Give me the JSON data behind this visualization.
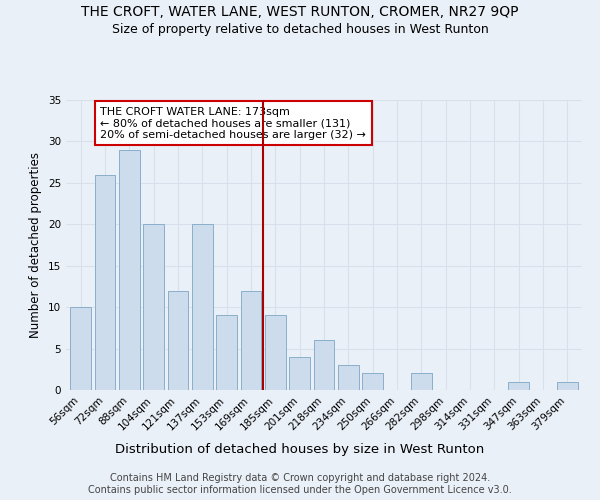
{
  "title": "THE CROFT, WATER LANE, WEST RUNTON, CROMER, NR27 9QP",
  "subtitle": "Size of property relative to detached houses in West Runton",
  "xlabel": "Distribution of detached houses by size in West Runton",
  "ylabel": "Number of detached properties",
  "categories": [
    "56sqm",
    "72sqm",
    "88sqm",
    "104sqm",
    "121sqm",
    "137sqm",
    "153sqm",
    "169sqm",
    "185sqm",
    "201sqm",
    "218sqm",
    "234sqm",
    "250sqm",
    "266sqm",
    "282sqm",
    "298sqm",
    "314sqm",
    "331sqm",
    "347sqm",
    "363sqm",
    "379sqm"
  ],
  "values": [
    10,
    26,
    29,
    20,
    12,
    20,
    9,
    12,
    9,
    4,
    6,
    3,
    2,
    0,
    2,
    0,
    0,
    0,
    1,
    0,
    1
  ],
  "bar_color": "#cddcec",
  "bar_edge_color": "#8aaecb",
  "vline_x": 7.5,
  "vline_color": "#aa0000",
  "annotation_text": "THE CROFT WATER LANE: 173sqm\n← 80% of detached houses are smaller (131)\n20% of semi-detached houses are larger (32) →",
  "annotation_box_color": "white",
  "annotation_box_edge_color": "#cc0000",
  "ylim": [
    0,
    35
  ],
  "yticks": [
    0,
    5,
    10,
    15,
    20,
    25,
    30,
    35
  ],
  "footer": "Contains HM Land Registry data © Crown copyright and database right 2024.\nContains public sector information licensed under the Open Government Licence v3.0.",
  "bg_color": "#eaf0f8",
  "grid_color": "#d8e0ec",
  "title_fontsize": 10,
  "subtitle_fontsize": 9,
  "xlabel_fontsize": 9.5,
  "ylabel_fontsize": 8.5,
  "tick_fontsize": 7.5,
  "footer_fontsize": 7,
  "annot_fontsize": 8
}
